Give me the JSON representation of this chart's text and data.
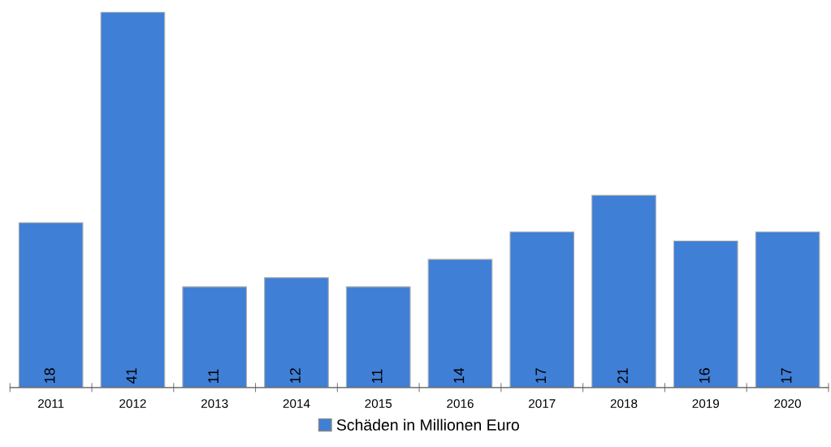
{
  "chart_data": {
    "type": "bar",
    "categories": [
      "2011",
      "2012",
      "2013",
      "2014",
      "2015",
      "2016",
      "2017",
      "2018",
      "2019",
      "2020"
    ],
    "series": [
      {
        "name": "Schäden in Millionen Euro",
        "color": "#3f7fd6",
        "values": [
          18,
          41,
          11,
          12,
          11,
          14,
          17,
          21,
          16,
          17
        ]
      }
    ],
    "data_labels": true,
    "legend": "bottom",
    "grid": false
  }
}
